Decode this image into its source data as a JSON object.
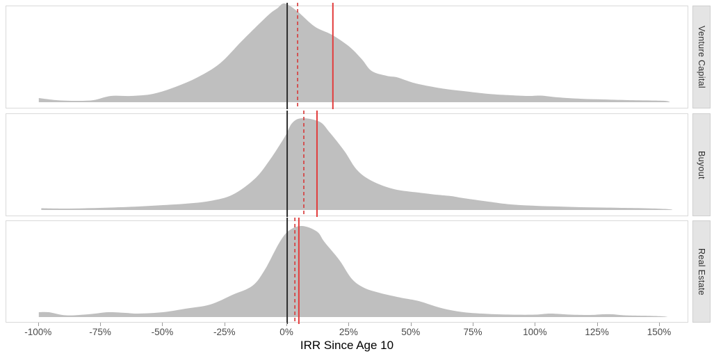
{
  "chart_data": {
    "type": "area",
    "title": "",
    "xlabel": "IRR Since Age 10",
    "x_ticks": [
      "-100%",
      "-75%",
      "-50%",
      "-25%",
      "0%",
      "25%",
      "50%",
      "75%",
      "100%",
      "125%",
      "150%"
    ],
    "x_tick_values": [
      -100,
      -75,
      -50,
      -25,
      0,
      25,
      50,
      75,
      100,
      125,
      150
    ],
    "xlim": [
      -113.1,
      161.2
    ],
    "grid": false,
    "legend": "none",
    "facet_orientation": "rows",
    "panels": [
      {
        "label": "Venture Capital",
        "zero_vline_pct": 0,
        "dashed_vline_pct": 4.2,
        "solid_vline_pct": 18.4,
        "density": [
          [
            -100,
            6
          ],
          [
            -93,
            3
          ],
          [
            -85,
            2
          ],
          [
            -78,
            3
          ],
          [
            -71,
            9
          ],
          [
            -63,
            9
          ],
          [
            -54,
            12
          ],
          [
            -45,
            22
          ],
          [
            -36,
            36
          ],
          [
            -27,
            56
          ],
          [
            -18,
            89
          ],
          [
            -8,
            124
          ],
          [
            -4,
            135
          ],
          [
            -1,
            142
          ],
          [
            4,
            131
          ],
          [
            11,
            109
          ],
          [
            18,
            97
          ],
          [
            25,
            80
          ],
          [
            30,
            62
          ],
          [
            34,
            45
          ],
          [
            40,
            38
          ],
          [
            44,
            36
          ],
          [
            49,
            30
          ],
          [
            53,
            26
          ],
          [
            62,
            20
          ],
          [
            71,
            16
          ],
          [
            81,
            12
          ],
          [
            90,
            10
          ],
          [
            97,
            9
          ],
          [
            102,
            9.5
          ],
          [
            109,
            7
          ],
          [
            118,
            5
          ],
          [
            127,
            4
          ],
          [
            137,
            3
          ],
          [
            146,
            2.5
          ],
          [
            152,
            2
          ],
          [
            154,
            0.5
          ]
        ]
      },
      {
        "label": "Buyout",
        "zero_vline_pct": 0,
        "dashed_vline_pct": 6.7,
        "solid_vline_pct": 12.0,
        "density": [
          [
            -99,
            2.5
          ],
          [
            -90,
            2
          ],
          [
            -81,
            2.5
          ],
          [
            -71,
            3.5
          ],
          [
            -60,
            5
          ],
          [
            -50,
            7
          ],
          [
            -41,
            9
          ],
          [
            -31,
            13
          ],
          [
            -22,
            22
          ],
          [
            -13,
            45
          ],
          [
            -7,
            72
          ],
          [
            -1,
            105
          ],
          [
            2,
            125
          ],
          [
            6,
            132
          ],
          [
            13,
            127
          ],
          [
            17,
            112
          ],
          [
            23,
            85
          ],
          [
            28,
            58
          ],
          [
            34,
            42
          ],
          [
            43,
            30
          ],
          [
            53,
            25
          ],
          [
            60,
            22
          ],
          [
            66,
            20
          ],
          [
            71,
            17
          ],
          [
            81,
            12
          ],
          [
            90,
            8
          ],
          [
            100,
            6
          ],
          [
            109,
            5
          ],
          [
            118,
            4
          ],
          [
            127,
            3.5
          ],
          [
            136,
            3
          ],
          [
            146,
            2.3
          ],
          [
            152,
            1.5
          ],
          [
            155,
            0.5
          ]
        ]
      },
      {
        "label": "Real Estate",
        "zero_vline_pct": 0,
        "dashed_vline_pct": 3.1,
        "solid_vline_pct": 4.7,
        "density": [
          [
            -100,
            7
          ],
          [
            -96,
            7
          ],
          [
            -89,
            2.5
          ],
          [
            -80,
            4
          ],
          [
            -72,
            7
          ],
          [
            -65,
            6
          ],
          [
            -60,
            5
          ],
          [
            -50,
            7
          ],
          [
            -41,
            12
          ],
          [
            -31,
            18
          ],
          [
            -22,
            32
          ],
          [
            -14,
            45
          ],
          [
            -9,
            68
          ],
          [
            -3,
            108
          ],
          [
            1,
            125
          ],
          [
            6,
            131
          ],
          [
            12,
            123
          ],
          [
            15,
            108
          ],
          [
            21,
            82
          ],
          [
            26,
            55
          ],
          [
            31,
            42
          ],
          [
            37,
            35
          ],
          [
            43,
            30
          ],
          [
            47,
            27
          ],
          [
            53,
            23
          ],
          [
            62,
            13
          ],
          [
            71,
            7
          ],
          [
            81,
            4.5
          ],
          [
            90,
            3.5
          ],
          [
            100,
            3.5
          ],
          [
            106,
            5
          ],
          [
            114,
            3.5
          ],
          [
            122,
            3
          ],
          [
            127,
            4
          ],
          [
            131,
            4
          ],
          [
            136,
            2.5
          ],
          [
            146,
            1.7
          ],
          [
            151,
            1
          ],
          [
            153,
            0.3
          ]
        ]
      }
    ],
    "colors": {
      "density_fill": "#bfbfbf",
      "zero_line": "#2b2b2b",
      "dashed_line": "#d64040",
      "solid_line": "#e23b3b",
      "strip_bg": "#e4e4e4",
      "strip_border": "#cfcfcf",
      "panel_border": "#d9d9d9",
      "tick_label": "#4a4a4a"
    }
  }
}
